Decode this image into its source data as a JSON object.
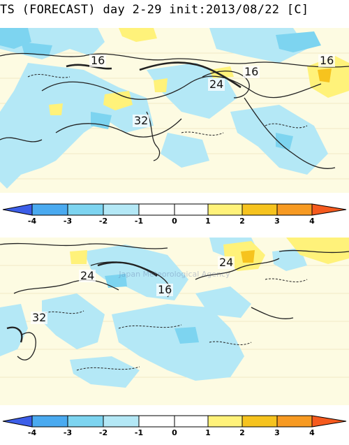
{
  "title": "TS (FORECAST) day 2-29 init:2013/08/22  [C]",
  "colors": {
    "land": "#fdfbe2",
    "anomaly_cold_1": "#b4e8f6",
    "anomaly_cold_2": "#7dd4f0",
    "anomaly_warm_1": "#fff27a",
    "anomaly_warm_2": "#f6c31e",
    "contour": "#222222"
  },
  "maps": [
    {
      "contour_labels": [
        "16",
        "16",
        "16",
        "24",
        "32"
      ]
    },
    {
      "contour_labels": [
        "24",
        "24",
        "16",
        "32"
      ]
    }
  ],
  "colorbar": {
    "ticks": [
      "-4",
      "-3",
      "-2",
      "-1",
      "0",
      "1",
      "2",
      "3",
      "4"
    ],
    "colors": [
      "#3c5ee8",
      "#4aaaf0",
      "#7dd4f0",
      "#b4e8f6",
      "#ffffff",
      "#ffffff",
      "#fff27a",
      "#f6c31e",
      "#f79a22",
      "#f55a1e"
    ]
  },
  "watermark": "Japan Meteorological Agency"
}
